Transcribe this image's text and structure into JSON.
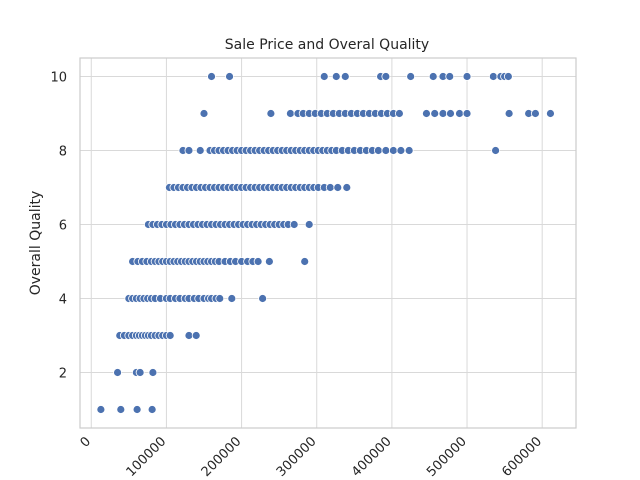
{
  "chart_data": {
    "type": "scatter",
    "title": "Sale Price and Overal Quality",
    "xlabel": "",
    "ylabel": "Overall Quality",
    "xlim": [
      -15000,
      645000
    ],
    "ylim": [
      0.5,
      10.5
    ],
    "xticks": [
      0,
      100000,
      200000,
      300000,
      400000,
      500000,
      600000
    ],
    "xtick_labels": [
      "0",
      "100000",
      "200000",
      "300000",
      "400000",
      "500000",
      "600000"
    ],
    "yticks": [
      2,
      4,
      6,
      8,
      10
    ],
    "ytick_labels": [
      "2",
      "4",
      "6",
      "8",
      "10"
    ],
    "xtick_rotation": 45,
    "grid": true,
    "marker_color": "#4c72b0",
    "series": [
      {
        "points": [
          {
            "x": 12789,
            "y": 1
          },
          {
            "x": 39300,
            "y": 1
          },
          {
            "x": 61000,
            "y": 1
          },
          {
            "x": 81000,
            "y": 1
          },
          {
            "x": 35000,
            "y": 2
          },
          {
            "x": 60000,
            "y": 2
          },
          {
            "x": 65000,
            "y": 2
          },
          {
            "x": 82000,
            "y": 2
          },
          {
            "x": 37900,
            "y": 3
          },
          {
            "x": 44000,
            "y": 3
          },
          {
            "x": 50000,
            "y": 3
          },
          {
            "x": 55000,
            "y": 3
          },
          {
            "x": 60000,
            "y": 3
          },
          {
            "x": 64000,
            "y": 3
          },
          {
            "x": 68000,
            "y": 3
          },
          {
            "x": 72000,
            "y": 3
          },
          {
            "x": 76000,
            "y": 3
          },
          {
            "x": 80000,
            "y": 3
          },
          {
            "x": 85000,
            "y": 3
          },
          {
            "x": 90000,
            "y": 3
          },
          {
            "x": 95000,
            "y": 3
          },
          {
            "x": 100000,
            "y": 3
          },
          {
            "x": 105000,
            "y": 3
          },
          {
            "x": 130000,
            "y": 3
          },
          {
            "x": 139600,
            "y": 3
          },
          {
            "x": 50000,
            "y": 4
          },
          {
            "x": 55000,
            "y": 4
          },
          {
            "x": 60000,
            "y": 4
          },
          {
            "x": 65000,
            "y": 4
          },
          {
            "x": 70000,
            "y": 4
          },
          {
            "x": 75000,
            "y": 4
          },
          {
            "x": 80000,
            "y": 4
          },
          {
            "x": 85000,
            "y": 4
          },
          {
            "x": 92000,
            "y": 4
          },
          {
            "x": 100000,
            "y": 4
          },
          {
            "x": 105000,
            "y": 4
          },
          {
            "x": 112000,
            "y": 4
          },
          {
            "x": 118000,
            "y": 4
          },
          {
            "x": 125000,
            "y": 4
          },
          {
            "x": 130000,
            "y": 4
          },
          {
            "x": 137000,
            "y": 4
          },
          {
            "x": 143000,
            "y": 4
          },
          {
            "x": 150000,
            "y": 4
          },
          {
            "x": 156000,
            "y": 4
          },
          {
            "x": 160000,
            "y": 4
          },
          {
            "x": 166000,
            "y": 4
          },
          {
            "x": 171000,
            "y": 4
          },
          {
            "x": 187000,
            "y": 4
          },
          {
            "x": 228000,
            "y": 4
          },
          {
            "x": 55000,
            "y": 5
          },
          {
            "x": 62000,
            "y": 5
          },
          {
            "x": 68000,
            "y": 5
          },
          {
            "x": 74000,
            "y": 5
          },
          {
            "x": 80000,
            "y": 5
          },
          {
            "x": 85000,
            "y": 5
          },
          {
            "x": 90000,
            "y": 5
          },
          {
            "x": 95000,
            "y": 5
          },
          {
            "x": 100000,
            "y": 5
          },
          {
            "x": 105000,
            "y": 5
          },
          {
            "x": 110000,
            "y": 5
          },
          {
            "x": 115000,
            "y": 5
          },
          {
            "x": 120000,
            "y": 5
          },
          {
            "x": 125000,
            "y": 5
          },
          {
            "x": 130000,
            "y": 5
          },
          {
            "x": 135000,
            "y": 5
          },
          {
            "x": 140000,
            "y": 5
          },
          {
            "x": 145000,
            "y": 5
          },
          {
            "x": 150000,
            "y": 5
          },
          {
            "x": 155000,
            "y": 5
          },
          {
            "x": 160000,
            "y": 5
          },
          {
            "x": 165000,
            "y": 5
          },
          {
            "x": 170000,
            "y": 5
          },
          {
            "x": 178000,
            "y": 5
          },
          {
            "x": 185000,
            "y": 5
          },
          {
            "x": 192000,
            "y": 5
          },
          {
            "x": 200000,
            "y": 5
          },
          {
            "x": 208000,
            "y": 5
          },
          {
            "x": 215000,
            "y": 5
          },
          {
            "x": 222000,
            "y": 5
          },
          {
            "x": 237000,
            "y": 5
          },
          {
            "x": 284000,
            "y": 5
          },
          {
            "x": 76000,
            "y": 6
          },
          {
            "x": 82000,
            "y": 6
          },
          {
            "x": 88000,
            "y": 6
          },
          {
            "x": 94000,
            "y": 6
          },
          {
            "x": 100000,
            "y": 6
          },
          {
            "x": 106000,
            "y": 6
          },
          {
            "x": 112000,
            "y": 6
          },
          {
            "x": 118000,
            "y": 6
          },
          {
            "x": 124000,
            "y": 6
          },
          {
            "x": 130000,
            "y": 6
          },
          {
            "x": 136000,
            "y": 6
          },
          {
            "x": 142000,
            "y": 6
          },
          {
            "x": 148000,
            "y": 6
          },
          {
            "x": 154000,
            "y": 6
          },
          {
            "x": 160000,
            "y": 6
          },
          {
            "x": 166000,
            "y": 6
          },
          {
            "x": 172000,
            "y": 6
          },
          {
            "x": 178000,
            "y": 6
          },
          {
            "x": 184000,
            "y": 6
          },
          {
            "x": 190000,
            "y": 6
          },
          {
            "x": 196000,
            "y": 6
          },
          {
            "x": 202000,
            "y": 6
          },
          {
            "x": 208000,
            "y": 6
          },
          {
            "x": 214000,
            "y": 6
          },
          {
            "x": 220000,
            "y": 6
          },
          {
            "x": 226000,
            "y": 6
          },
          {
            "x": 232000,
            "y": 6
          },
          {
            "x": 238000,
            "y": 6
          },
          {
            "x": 244000,
            "y": 6
          },
          {
            "x": 250000,
            "y": 6
          },
          {
            "x": 256000,
            "y": 6
          },
          {
            "x": 262000,
            "y": 6
          },
          {
            "x": 270000,
            "y": 6
          },
          {
            "x": 290000,
            "y": 6
          },
          {
            "x": 104000,
            "y": 7
          },
          {
            "x": 110000,
            "y": 7
          },
          {
            "x": 116000,
            "y": 7
          },
          {
            "x": 122000,
            "y": 7
          },
          {
            "x": 128000,
            "y": 7
          },
          {
            "x": 134000,
            "y": 7
          },
          {
            "x": 140000,
            "y": 7
          },
          {
            "x": 146000,
            "y": 7
          },
          {
            "x": 152000,
            "y": 7
          },
          {
            "x": 158000,
            "y": 7
          },
          {
            "x": 164000,
            "y": 7
          },
          {
            "x": 170000,
            "y": 7
          },
          {
            "x": 176000,
            "y": 7
          },
          {
            "x": 182000,
            "y": 7
          },
          {
            "x": 188000,
            "y": 7
          },
          {
            "x": 194000,
            "y": 7
          },
          {
            "x": 200000,
            "y": 7
          },
          {
            "x": 206000,
            "y": 7
          },
          {
            "x": 212000,
            "y": 7
          },
          {
            "x": 218000,
            "y": 7
          },
          {
            "x": 224000,
            "y": 7
          },
          {
            "x": 230000,
            "y": 7
          },
          {
            "x": 236000,
            "y": 7
          },
          {
            "x": 242000,
            "y": 7
          },
          {
            "x": 248000,
            "y": 7
          },
          {
            "x": 254000,
            "y": 7
          },
          {
            "x": 260000,
            "y": 7
          },
          {
            "x": 266000,
            "y": 7
          },
          {
            "x": 272000,
            "y": 7
          },
          {
            "x": 278000,
            "y": 7
          },
          {
            "x": 284000,
            "y": 7
          },
          {
            "x": 290000,
            "y": 7
          },
          {
            "x": 296000,
            "y": 7
          },
          {
            "x": 302000,
            "y": 7
          },
          {
            "x": 310000,
            "y": 7
          },
          {
            "x": 318000,
            "y": 7
          },
          {
            "x": 328000,
            "y": 7
          },
          {
            "x": 340000,
            "y": 7
          },
          {
            "x": 122000,
            "y": 8
          },
          {
            "x": 130000,
            "y": 8
          },
          {
            "x": 145000,
            "y": 8
          },
          {
            "x": 158000,
            "y": 8
          },
          {
            "x": 164000,
            "y": 8
          },
          {
            "x": 170000,
            "y": 8
          },
          {
            "x": 176000,
            "y": 8
          },
          {
            "x": 182000,
            "y": 8
          },
          {
            "x": 188000,
            "y": 8
          },
          {
            "x": 194000,
            "y": 8
          },
          {
            "x": 200000,
            "y": 8
          },
          {
            "x": 206000,
            "y": 8
          },
          {
            "x": 212000,
            "y": 8
          },
          {
            "x": 218000,
            "y": 8
          },
          {
            "x": 224000,
            "y": 8
          },
          {
            "x": 230000,
            "y": 8
          },
          {
            "x": 236000,
            "y": 8
          },
          {
            "x": 242000,
            "y": 8
          },
          {
            "x": 248000,
            "y": 8
          },
          {
            "x": 254000,
            "y": 8
          },
          {
            "x": 260000,
            "y": 8
          },
          {
            "x": 266000,
            "y": 8
          },
          {
            "x": 272000,
            "y": 8
          },
          {
            "x": 278000,
            "y": 8
          },
          {
            "x": 284000,
            "y": 8
          },
          {
            "x": 290000,
            "y": 8
          },
          {
            "x": 296000,
            "y": 8
          },
          {
            "x": 302000,
            "y": 8
          },
          {
            "x": 308000,
            "y": 8
          },
          {
            "x": 314000,
            "y": 8
          },
          {
            "x": 320000,
            "y": 8
          },
          {
            "x": 326000,
            "y": 8
          },
          {
            "x": 334000,
            "y": 8
          },
          {
            "x": 342000,
            "y": 8
          },
          {
            "x": 350000,
            "y": 8
          },
          {
            "x": 358000,
            "y": 8
          },
          {
            "x": 366000,
            "y": 8
          },
          {
            "x": 374000,
            "y": 8
          },
          {
            "x": 382000,
            "y": 8
          },
          {
            "x": 392000,
            "y": 8
          },
          {
            "x": 402000,
            "y": 8
          },
          {
            "x": 412000,
            "y": 8
          },
          {
            "x": 423000,
            "y": 8
          },
          {
            "x": 538000,
            "y": 8
          },
          {
            "x": 150000,
            "y": 9
          },
          {
            "x": 239000,
            "y": 9
          },
          {
            "x": 265000,
            "y": 9
          },
          {
            "x": 275000,
            "y": 9
          },
          {
            "x": 282000,
            "y": 9
          },
          {
            "x": 290000,
            "y": 9
          },
          {
            "x": 298000,
            "y": 9
          },
          {
            "x": 306000,
            "y": 9
          },
          {
            "x": 314000,
            "y": 9
          },
          {
            "x": 322000,
            "y": 9
          },
          {
            "x": 330000,
            "y": 9
          },
          {
            "x": 338000,
            "y": 9
          },
          {
            "x": 346000,
            "y": 9
          },
          {
            "x": 354000,
            "y": 9
          },
          {
            "x": 362000,
            "y": 9
          },
          {
            "x": 370000,
            "y": 9
          },
          {
            "x": 378000,
            "y": 9
          },
          {
            "x": 386000,
            "y": 9
          },
          {
            "x": 394000,
            "y": 9
          },
          {
            "x": 402000,
            "y": 9
          },
          {
            "x": 410000,
            "y": 9
          },
          {
            "x": 446000,
            "y": 9
          },
          {
            "x": 457000,
            "y": 9
          },
          {
            "x": 468000,
            "y": 9
          },
          {
            "x": 478000,
            "y": 9
          },
          {
            "x": 490000,
            "y": 9
          },
          {
            "x": 500000,
            "y": 9
          },
          {
            "x": 556000,
            "y": 9
          },
          {
            "x": 582000,
            "y": 9
          },
          {
            "x": 591000,
            "y": 9
          },
          {
            "x": 611000,
            "y": 9
          },
          {
            "x": 160000,
            "y": 10
          },
          {
            "x": 184000,
            "y": 10
          },
          {
            "x": 310000,
            "y": 10
          },
          {
            "x": 326000,
            "y": 10
          },
          {
            "x": 338000,
            "y": 10
          },
          {
            "x": 385000,
            "y": 10
          },
          {
            "x": 392000,
            "y": 10
          },
          {
            "x": 425000,
            "y": 10
          },
          {
            "x": 455000,
            "y": 10
          },
          {
            "x": 468000,
            "y": 10
          },
          {
            "x": 477000,
            "y": 10
          },
          {
            "x": 500000,
            "y": 10
          },
          {
            "x": 535000,
            "y": 10
          },
          {
            "x": 545000,
            "y": 10
          },
          {
            "x": 550000,
            "y": 10
          },
          {
            "x": 555000,
            "y": 10
          }
        ]
      }
    ]
  }
}
